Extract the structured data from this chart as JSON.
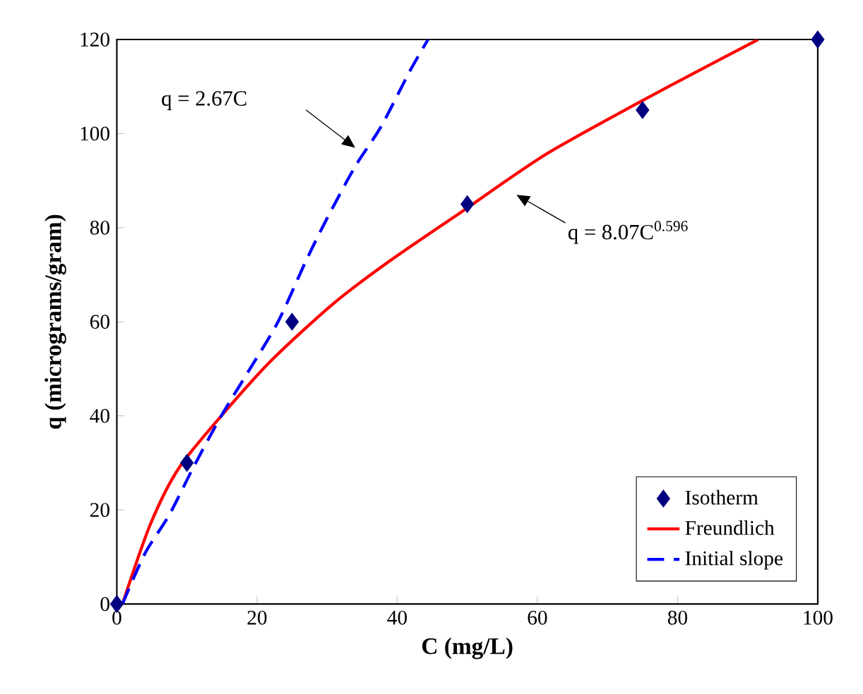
{
  "chart_data": {
    "type": "scatter",
    "xlabel": "C (mg/L)",
    "ylabel": "q (micrograms/gram)",
    "xlim": [
      0,
      100
    ],
    "ylim": [
      0,
      120
    ],
    "xticks": [
      0,
      20,
      40,
      60,
      80,
      100
    ],
    "yticks": [
      0,
      20,
      40,
      60,
      80,
      100,
      120
    ],
    "grid": false,
    "legend": "bottom right",
    "series": [
      {
        "name": "Isotherm",
        "marker": "diamond",
        "color": "#000080",
        "x": [
          0,
          10,
          25,
          50,
          75,
          100
        ],
        "values": [
          0,
          30,
          60,
          85,
          105,
          120
        ]
      },
      {
        "name": "Freundlich",
        "type": "line",
        "line_style": "solid",
        "color": "#ff0000",
        "x": [
          0.8,
          4.8,
          8.9,
          15.5,
          22.2,
          31,
          39,
          49.8,
          61,
          74.6,
          84.7,
          91.5
        ],
        "values": [
          0,
          17,
          29,
          41,
          52,
          64,
          73,
          84,
          95.4,
          106.7,
          114.7,
          120
        ]
      },
      {
        "name": "Initial slope",
        "type": "line",
        "line_style": "dashed",
        "color": "#0000ff",
        "x": [
          0.8,
          4,
          7.5,
          10.9,
          14.9,
          19,
          23,
          27,
          30,
          34,
          37.7,
          41.7,
          44.4
        ],
        "values": [
          0,
          10.7,
          19,
          29,
          40,
          50,
          60,
          73,
          82,
          93,
          101.5,
          113,
          120
        ]
      }
    ],
    "annotations": [
      "q = 2.67C",
      "q = 8.07C$^{0.596}$"
    ]
  }
}
